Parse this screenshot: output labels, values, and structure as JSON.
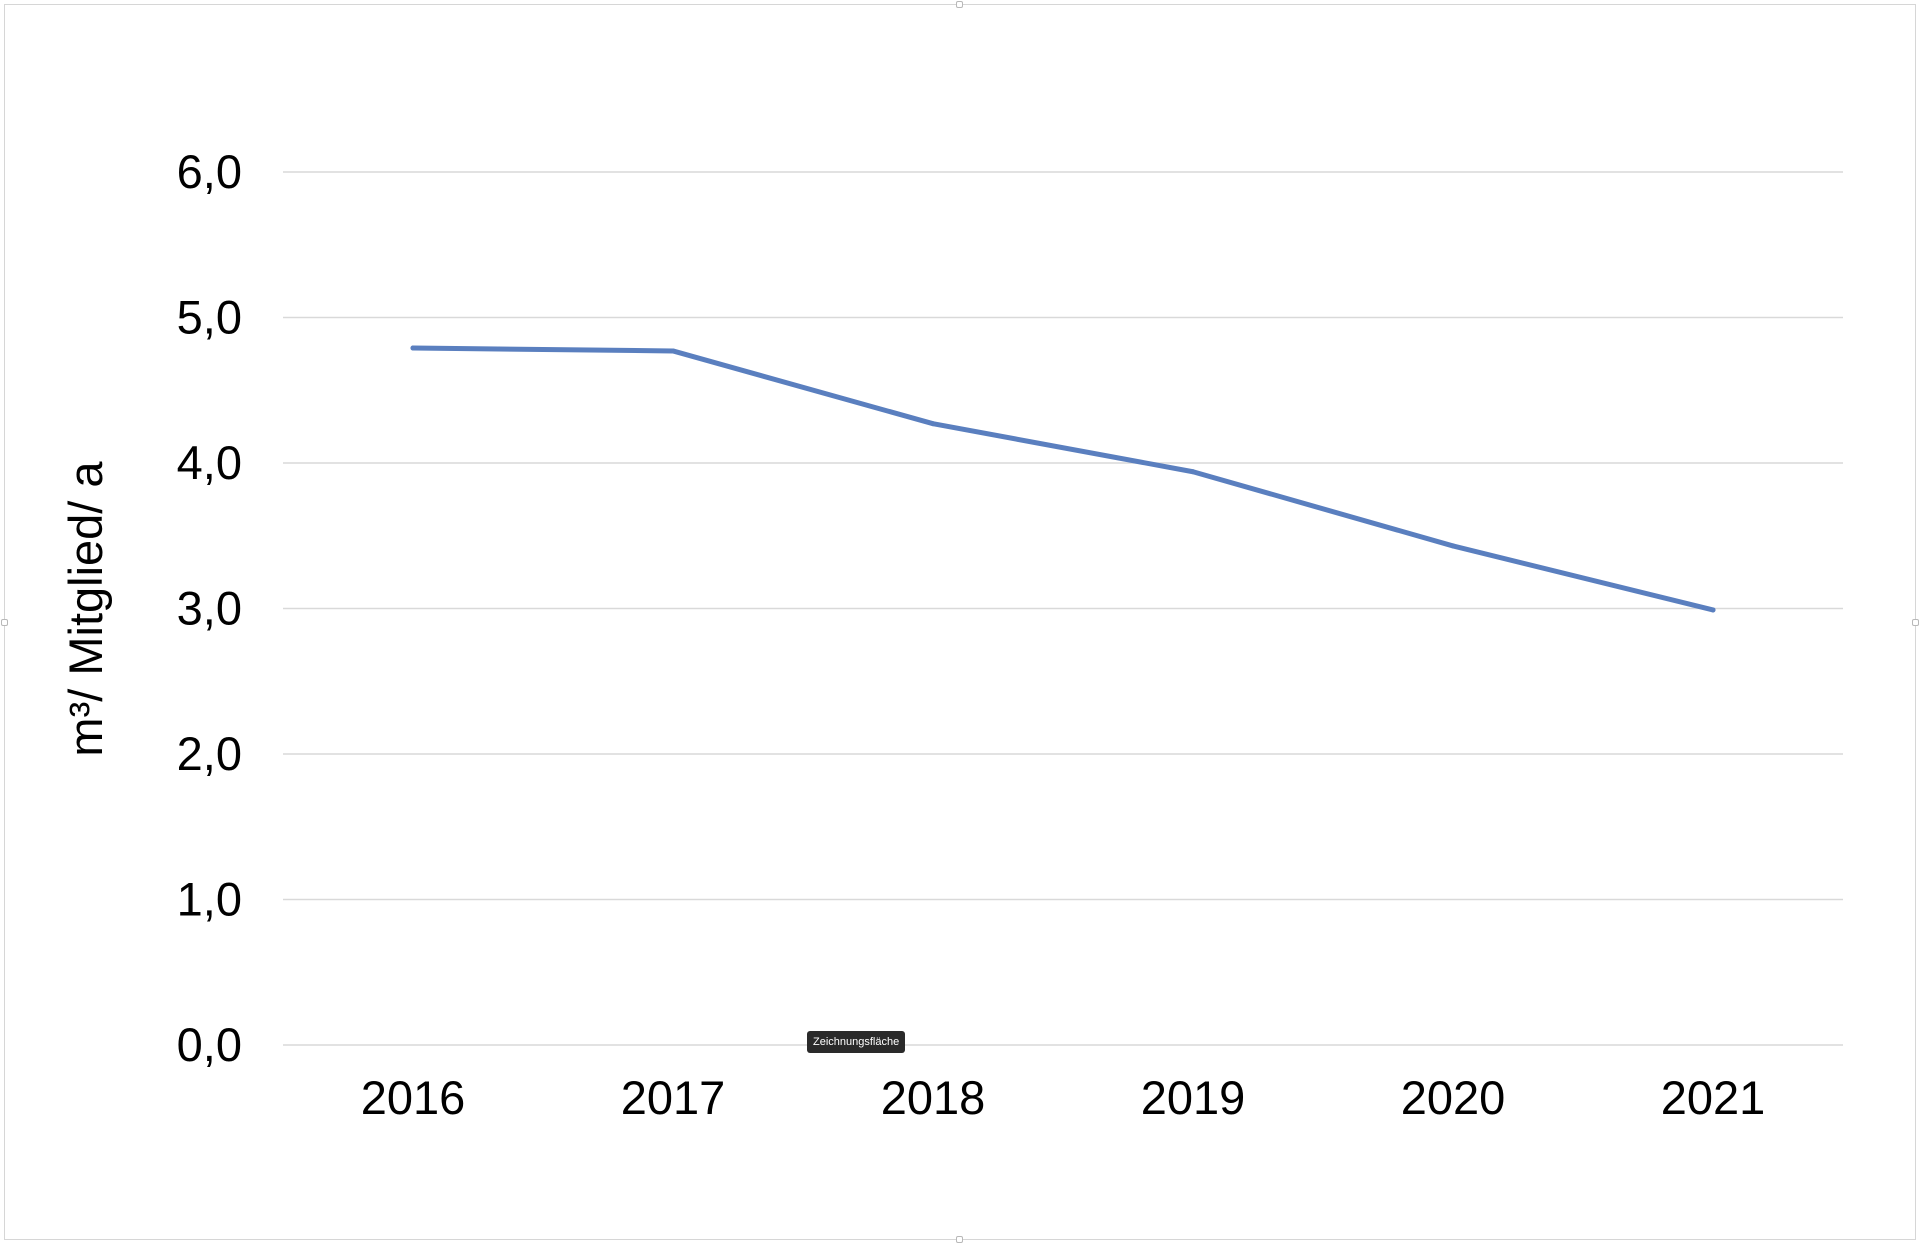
{
  "colors": {
    "series": "#5a7fbf",
    "grid": "#d9d9d9",
    "text": "#000000"
  },
  "tooltip": {
    "text": "Zeichnungsfläche"
  },
  "chart_data": {
    "type": "line",
    "title": "",
    "xlabel": "",
    "ylabel": "m³/ Mitglied/ a",
    "x": [
      "2016",
      "2017",
      "2018",
      "2019",
      "2020",
      "2021"
    ],
    "series": [
      {
        "values": [
          4.79,
          4.77,
          4.27,
          3.94,
          3.43,
          2.99
        ]
      }
    ],
    "ylim": [
      0,
      6
    ],
    "yticks": [
      0,
      1,
      2,
      3,
      4,
      5,
      6
    ],
    "ytick_labels": [
      "0,0",
      "1,0",
      "2,0",
      "3,0",
      "4,0",
      "5,0",
      "6,0"
    ],
    "grid": true,
    "legend": "none"
  }
}
